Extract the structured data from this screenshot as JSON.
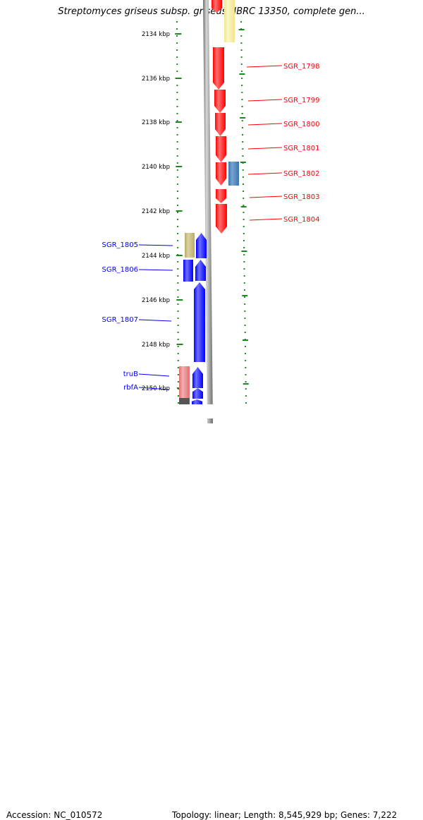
{
  "title": "Streptomyces griseus subsp. griseus NBRC 13350, complete gen...",
  "footer": {
    "accession": "Accession: NC_010572",
    "topology": "Topology: linear; Length: 8,545,929 bp; Genes: 7,222"
  },
  "colors": {
    "right_strand_gene": "#ff0000",
    "left_strand_gene": "#0000ff",
    "pale_yellow_feature": "#f0e68c",
    "khaki_feature": "#b8ad6b",
    "steel_blue_feature": "#3a75b0",
    "pink_feature": "#e07070",
    "gray_feature": "#555555",
    "ruler_ticks": "#1a8a1a",
    "backbone": "#808080"
  },
  "scale_labels": [
    "2134 kbp",
    "2136 kbp",
    "2138 kbp",
    "2140 kbp",
    "2142 kbp",
    "2144 kbp",
    "2146 kbp",
    "2148 kbp",
    "2150 kbp"
  ],
  "right_genes": [
    {
      "label": "SGR_1798"
    },
    {
      "label": "SGR_1799"
    },
    {
      "label": "SGR_1800"
    },
    {
      "label": "SGR_1801"
    },
    {
      "label": "SGR_1802"
    },
    {
      "label": "SGR_1803"
    },
    {
      "label": "SGR_1804"
    }
  ],
  "left_genes": [
    {
      "label": "SGR_1805"
    },
    {
      "label": "SGR_1806"
    },
    {
      "label": "SGR_1807"
    },
    {
      "label": "truB"
    },
    {
      "label": "rbfA"
    }
  ]
}
